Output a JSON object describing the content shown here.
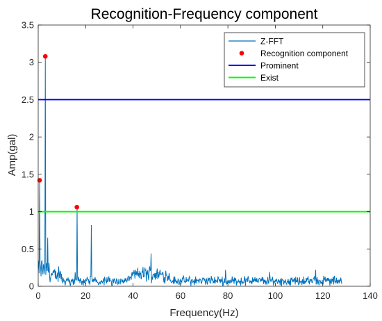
{
  "chart_data": {
    "type": "line",
    "title": "Recognition-Frequency component",
    "xlabel": "Frequency(Hz)",
    "ylabel": "Amp(gal)",
    "xlim": [
      0,
      140
    ],
    "ylim": [
      0,
      3.5
    ],
    "xticks": [
      0,
      20,
      40,
      60,
      80,
      100,
      120,
      140
    ],
    "yticks": [
      0,
      0.5,
      1,
      1.5,
      2,
      2.5,
      3,
      3.5
    ],
    "xtick_labels": [
      "0",
      "20",
      "40",
      "60",
      "80",
      "100",
      "120",
      "140"
    ],
    "ytick_labels": [
      "0",
      "0.5",
      "1",
      "1.5",
      "2",
      "2.5",
      "3",
      "3.5"
    ],
    "grid": false,
    "legend_position": "top-right",
    "series": [
      {
        "name": "Z-FFT",
        "kind": "line",
        "color": "#0072BD",
        "x_range": [
          0,
          128
        ],
        "key_points": [
          {
            "x": 0.5,
            "y": 1.42
          },
          {
            "x": 1.5,
            "y": 0.35
          },
          {
            "x": 3.0,
            "y": 3.08
          },
          {
            "x": 4.0,
            "y": 0.65
          },
          {
            "x": 16.3,
            "y": 1.06
          },
          {
            "x": 22.3,
            "y": 0.82
          },
          {
            "x": 47.5,
            "y": 0.44
          },
          {
            "x": 79.0,
            "y": 0.22
          },
          {
            "x": 117.0,
            "y": 0.22
          }
        ],
        "baseline_amplitude": 0.1
      },
      {
        "name": "Recognition component",
        "kind": "scatter",
        "color": "#FF0000",
        "points": [
          {
            "x": 0.6,
            "y": 1.42
          },
          {
            "x": 3.0,
            "y": 3.08
          },
          {
            "x": 16.3,
            "y": 1.06
          }
        ]
      },
      {
        "name": "Prominent",
        "kind": "hline",
        "color": "#0000FF",
        "y": 2.5
      },
      {
        "name": "Exist",
        "kind": "hline",
        "color": "#00FF00",
        "y": 1.0
      }
    ]
  }
}
